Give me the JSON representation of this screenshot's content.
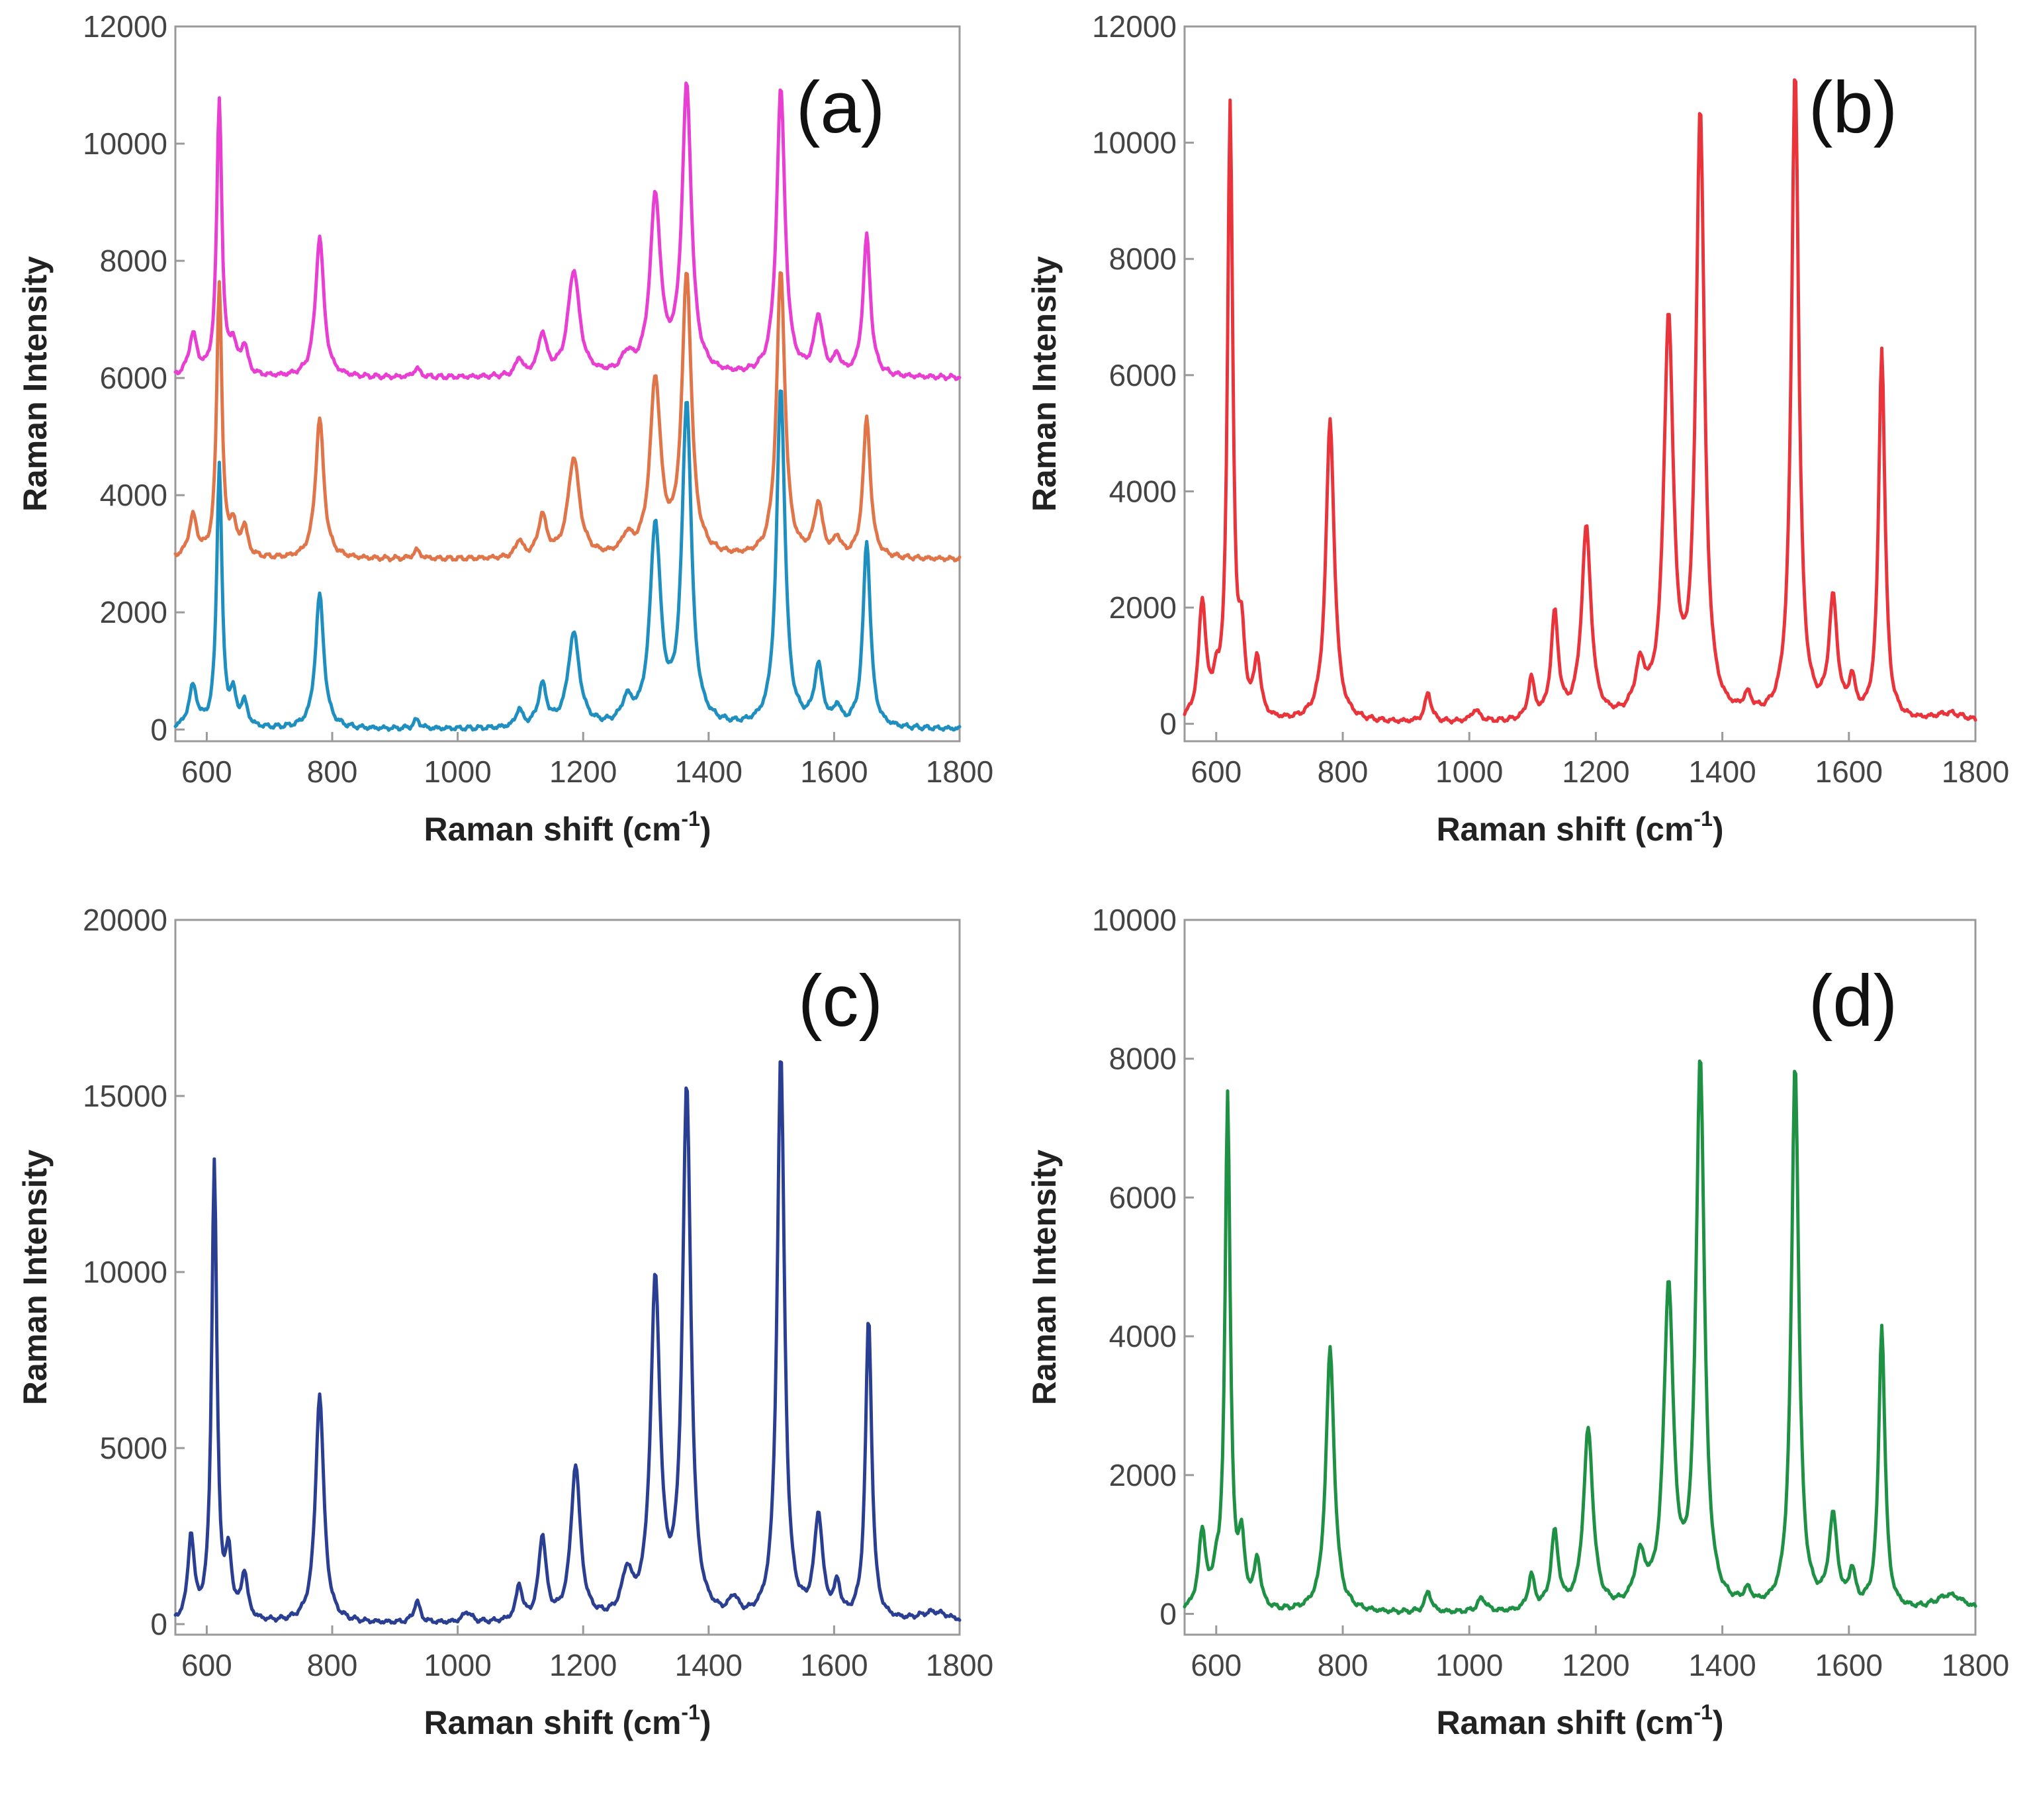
{
  "chart_data": [
    {
      "type": "line",
      "panel_label": "(a)",
      "xlabel": "Raman shift (cm",
      "xlabel_sup": "-1",
      "xlabel_end": ")",
      "ylabel": "Raman Intensity",
      "xlim": [
        550,
        1800
      ],
      "ylim": [
        -200,
        12000
      ],
      "x_ticks": [
        600,
        800,
        1000,
        1200,
        1400,
        1600,
        1800
      ],
      "y_ticks": [
        0,
        2000,
        4000,
        6000,
        8000,
        10000,
        12000
      ],
      "x_tick_labels": [
        "600",
        "800",
        "1000",
        "1200",
        "1400",
        "1600",
        "1800"
      ],
      "y_tick_labels": [
        "0",
        "2000",
        "4000",
        "6000",
        "8000",
        "10000",
        "12000"
      ],
      "series": [
        {
          "name": "magenta",
          "color": "#e83fd2",
          "baseline": 6000,
          "peaks": [
            [
              578,
              700,
              8
            ],
            [
              620,
              4700,
              5
            ],
            [
              642,
              500,
              6
            ],
            [
              660,
              500,
              6
            ],
            [
              780,
              2400,
              8
            ],
            [
              935,
              150,
              6
            ],
            [
              1098,
              300,
              6
            ],
            [
              1135,
              700,
              8
            ],
            [
              1185,
              1800,
              11
            ],
            [
              1270,
              300,
              10
            ],
            [
              1315,
              3000,
              10
            ],
            [
              1365,
              4900,
              9
            ],
            [
              1515,
              4900,
              8
            ],
            [
              1575,
              1000,
              8
            ],
            [
              1605,
              300,
              6
            ],
            [
              1652,
              2400,
              7
            ]
          ]
        },
        {
          "name": "orange",
          "color": "#e0754a",
          "baseline": 2900,
          "peaks": [
            [
              578,
              700,
              8
            ],
            [
              620,
              4700,
              5
            ],
            [
              642,
              500,
              6
            ],
            [
              660,
              500,
              6
            ],
            [
              780,
              2400,
              8
            ],
            [
              935,
              150,
              6
            ],
            [
              1098,
              300,
              6
            ],
            [
              1135,
              700,
              8
            ],
            [
              1185,
              1700,
              11
            ],
            [
              1270,
              300,
              10
            ],
            [
              1315,
              3000,
              10
            ],
            [
              1365,
              4800,
              9
            ],
            [
              1515,
              4900,
              8
            ],
            [
              1575,
              900,
              8
            ],
            [
              1605,
              300,
              6
            ],
            [
              1652,
              2400,
              7
            ]
          ]
        },
        {
          "name": "blue",
          "color": "#1f8fbf",
          "baseline": 0,
          "peaks": [
            [
              578,
              700,
              8
            ],
            [
              620,
              4500,
              5
            ],
            [
              642,
              500,
              6
            ],
            [
              660,
              400,
              6
            ],
            [
              780,
              2300,
              8
            ],
            [
              935,
              150,
              6
            ],
            [
              1098,
              300,
              6
            ],
            [
              1135,
              700,
              8
            ],
            [
              1185,
              1600,
              11
            ],
            [
              1270,
              400,
              10
            ],
            [
              1315,
              3400,
              10
            ],
            [
              1365,
              5500,
              9
            ],
            [
              1515,
              5800,
              8
            ],
            [
              1575,
              1000,
              8
            ],
            [
              1605,
              300,
              6
            ],
            [
              1652,
              3200,
              7
            ]
          ]
        }
      ]
    },
    {
      "type": "line",
      "panel_label": "(b)",
      "xlabel": "Raman shift (cm",
      "xlabel_sup": "-1",
      "xlabel_end": ")",
      "ylabel": "Raman Intensity",
      "xlim": [
        550,
        1800
      ],
      "ylim": [
        -300,
        12000
      ],
      "x_ticks": [
        600,
        800,
        1000,
        1200,
        1400,
        1600,
        1800
      ],
      "y_ticks": [
        0,
        2000,
        4000,
        6000,
        8000,
        10000,
        12000
      ],
      "x_tick_labels": [
        "600",
        "800",
        "1000",
        "1200",
        "1400",
        "1600",
        "1800"
      ],
      "y_tick_labels": [
        "0",
        "2000",
        "4000",
        "6000",
        "8000",
        "10000",
        "12000"
      ],
      "series": [
        {
          "name": "red",
          "color": "#e8343a",
          "baseline": 0,
          "peaks": [
            [
              578,
              2000,
              7
            ],
            [
              600,
              500,
              5
            ],
            [
              622,
              10500,
              5
            ],
            [
              640,
              1200,
              6
            ],
            [
              665,
              1000,
              6
            ],
            [
              780,
              5200,
              8
            ],
            [
              935,
              500,
              6
            ],
            [
              1010,
              200,
              8
            ],
            [
              1098,
              700,
              6
            ],
            [
              1135,
              1800,
              7
            ],
            [
              1185,
              3300,
              9
            ],
            [
              1270,
              800,
              10
            ],
            [
              1315,
              6800,
              9
            ],
            [
              1365,
              10400,
              8
            ],
            [
              1440,
              300,
              8
            ],
            [
              1515,
              11200,
              7
            ],
            [
              1575,
              2000,
              8
            ],
            [
              1605,
              600,
              6
            ],
            [
              1652,
              6400,
              6
            ],
            [
              1760,
              150,
              30
            ]
          ]
        }
      ]
    },
    {
      "type": "line",
      "panel_label": "(c)",
      "xlabel": "Raman shift (cm",
      "xlabel_sup": "-1",
      "xlabel_end": ")",
      "ylabel": "Raman Intensity",
      "xlim": [
        550,
        1800
      ],
      "ylim": [
        -300,
        20000
      ],
      "x_ticks": [
        600,
        800,
        1000,
        1200,
        1400,
        1600,
        1800
      ],
      "y_ticks": [
        0,
        5000,
        10000,
        15000,
        20000
      ],
      "x_tick_labels": [
        "600",
        "800",
        "1000",
        "1200",
        "1400",
        "1600",
        "1800"
      ],
      "y_tick_labels": [
        "0",
        "5000",
        "10000",
        "15000",
        "20000"
      ],
      "series": [
        {
          "name": "navy",
          "color": "#2b3f92",
          "baseline": 0,
          "peaks": [
            [
              575,
              2400,
              6
            ],
            [
              612,
              13000,
              5
            ],
            [
              635,
              1700,
              6
            ],
            [
              660,
              1300,
              6
            ],
            [
              780,
              6500,
              8
            ],
            [
              935,
              600,
              6
            ],
            [
              1015,
              300,
              8
            ],
            [
              1098,
              1000,
              6
            ],
            [
              1135,
              2400,
              7
            ],
            [
              1188,
              4400,
              9
            ],
            [
              1270,
              1200,
              10
            ],
            [
              1315,
              9500,
              9
            ],
            [
              1365,
              15000,
              8
            ],
            [
              1440,
              500,
              8
            ],
            [
              1515,
              16100,
              7
            ],
            [
              1575,
              2900,
              8
            ],
            [
              1605,
              900,
              6
            ],
            [
              1655,
              8600,
              6
            ],
            [
              1760,
              300,
              30
            ]
          ]
        }
      ]
    },
    {
      "type": "line",
      "panel_label": "(d)",
      "xlabel": "Raman shift (cm",
      "xlabel_sup": "-1",
      "xlabel_end": ")",
      "ylabel": "Raman Intensity",
      "xlim": [
        550,
        1800
      ],
      "ylim": [
        -300,
        10000
      ],
      "x_ticks": [
        600,
        800,
        1000,
        1200,
        1400,
        1600,
        1800
      ],
      "y_ticks": [
        0,
        2000,
        4000,
        6000,
        8000,
        10000
      ],
      "x_tick_labels": [
        "600",
        "800",
        "1000",
        "1200",
        "1400",
        "1600",
        "1800"
      ],
      "y_tick_labels": [
        "0",
        "2000",
        "4000",
        "6000",
        "8000",
        "10000"
      ],
      "series": [
        {
          "name": "green",
          "color": "#1e9144",
          "baseline": 0,
          "peaks": [
            [
              578,
              1100,
              7
            ],
            [
              600,
              400,
              5
            ],
            [
              618,
              7400,
              5
            ],
            [
              640,
              900,
              6
            ],
            [
              665,
              700,
              6
            ],
            [
              780,
              3800,
              8
            ],
            [
              935,
              300,
              6
            ],
            [
              1020,
              200,
              8
            ],
            [
              1098,
              500,
              6
            ],
            [
              1135,
              1100,
              7
            ],
            [
              1188,
              2600,
              9
            ],
            [
              1270,
              700,
              10
            ],
            [
              1315,
              4600,
              9
            ],
            [
              1365,
              7900,
              8
            ],
            [
              1440,
              200,
              8
            ],
            [
              1515,
              7900,
              7
            ],
            [
              1575,
              1300,
              8
            ],
            [
              1605,
              500,
              6
            ],
            [
              1652,
              4100,
              6
            ],
            [
              1760,
              250,
              30
            ]
          ]
        }
      ]
    }
  ]
}
